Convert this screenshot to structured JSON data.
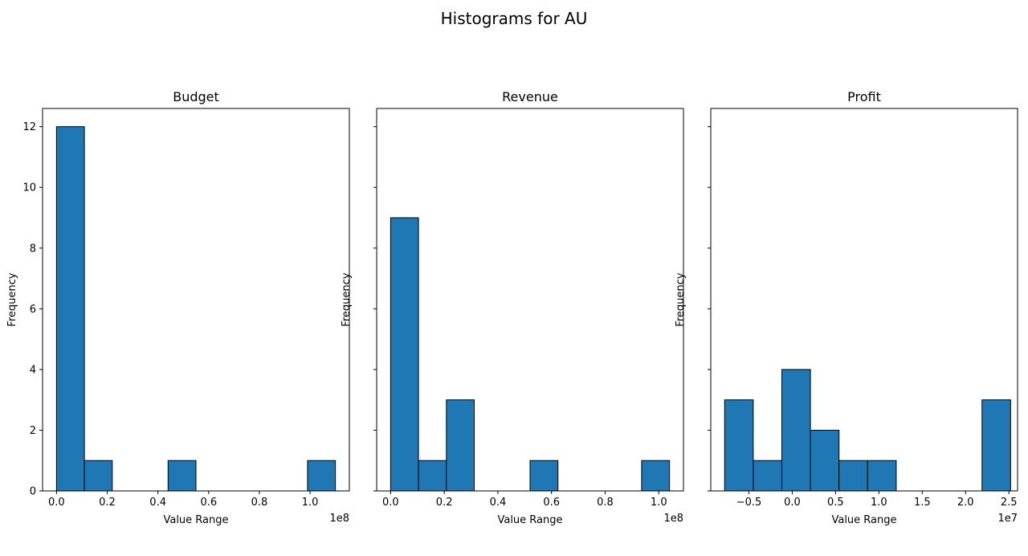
{
  "suptitle": "Histograms for AU",
  "chart_data": [
    {
      "type": "bar",
      "title": "Budget",
      "xlabel": "Value Range",
      "ylabel": "Frequency",
      "offset_text": "1e8",
      "xlim": [
        -0.055,
        1.155
      ],
      "ylim": [
        0,
        12.6
      ],
      "xticks": [
        0.0,
        0.2,
        0.4,
        0.6,
        0.8,
        1.0
      ],
      "xtick_labels": [
        "0.0",
        "0.2",
        "0.4",
        "0.6",
        "0.8",
        "1.0"
      ],
      "yticks": [
        0,
        2,
        4,
        6,
        8,
        10,
        12
      ],
      "ytick_labels": [
        "0",
        "2",
        "4",
        "6",
        "8",
        "10",
        "12"
      ],
      "bin_edges": [
        0.0,
        0.11,
        0.22,
        0.33,
        0.44,
        0.55,
        0.66,
        0.77,
        0.88,
        0.99,
        1.1
      ],
      "values": [
        12,
        1,
        0,
        0,
        1,
        0,
        0,
        0,
        0,
        1
      ],
      "color": "#1f77b4",
      "edgecolor": "#000000"
    },
    {
      "type": "bar",
      "title": "Revenue",
      "xlabel": "Value Range",
      "ylabel": "Frequency",
      "offset_text": "1e8",
      "xlim": [
        -0.052,
        1.092
      ],
      "ylim": [
        0,
        12.6
      ],
      "xticks": [
        0.0,
        0.2,
        0.4,
        0.6,
        0.8,
        1.0
      ],
      "xtick_labels": [
        "0.0",
        "0.2",
        "0.4",
        "0.6",
        "0.8",
        "1.0"
      ],
      "yticks": [
        0,
        2,
        4,
        6,
        8,
        10,
        12
      ],
      "ytick_labels": [],
      "bin_edges": [
        0.0,
        0.104,
        0.208,
        0.312,
        0.416,
        0.52,
        0.624,
        0.728,
        0.832,
        0.936,
        1.04
      ],
      "values": [
        9,
        1,
        3,
        0,
        0,
        1,
        0,
        0,
        0,
        1
      ],
      "color": "#1f77b4",
      "edgecolor": "#000000"
    },
    {
      "type": "bar",
      "title": "Profit",
      "xlabel": "Value Range",
      "ylabel": "Frequency",
      "offset_text": "1e7",
      "xlim": [
        -0.94,
        2.6
      ],
      "ylim": [
        0,
        12.6
      ],
      "xticks": [
        -0.5,
        0.0,
        0.5,
        1.0,
        1.5,
        2.0,
        2.5
      ],
      "xtick_labels": [
        "−0.5",
        "0.0",
        "0.5",
        "1.0",
        "1.5",
        "2.0",
        "2.5"
      ],
      "yticks": [
        0,
        2,
        4,
        6,
        8,
        10,
        12
      ],
      "ytick_labels": [],
      "bin_edges": [
        -0.78,
        -0.45,
        -0.12,
        0.21,
        0.54,
        0.87,
        1.2,
        1.53,
        1.86,
        2.19,
        2.52
      ],
      "values": [
        3,
        1,
        4,
        2,
        1,
        1,
        0,
        0,
        0,
        3
      ],
      "color": "#1f77b4",
      "edgecolor": "#000000"
    }
  ]
}
